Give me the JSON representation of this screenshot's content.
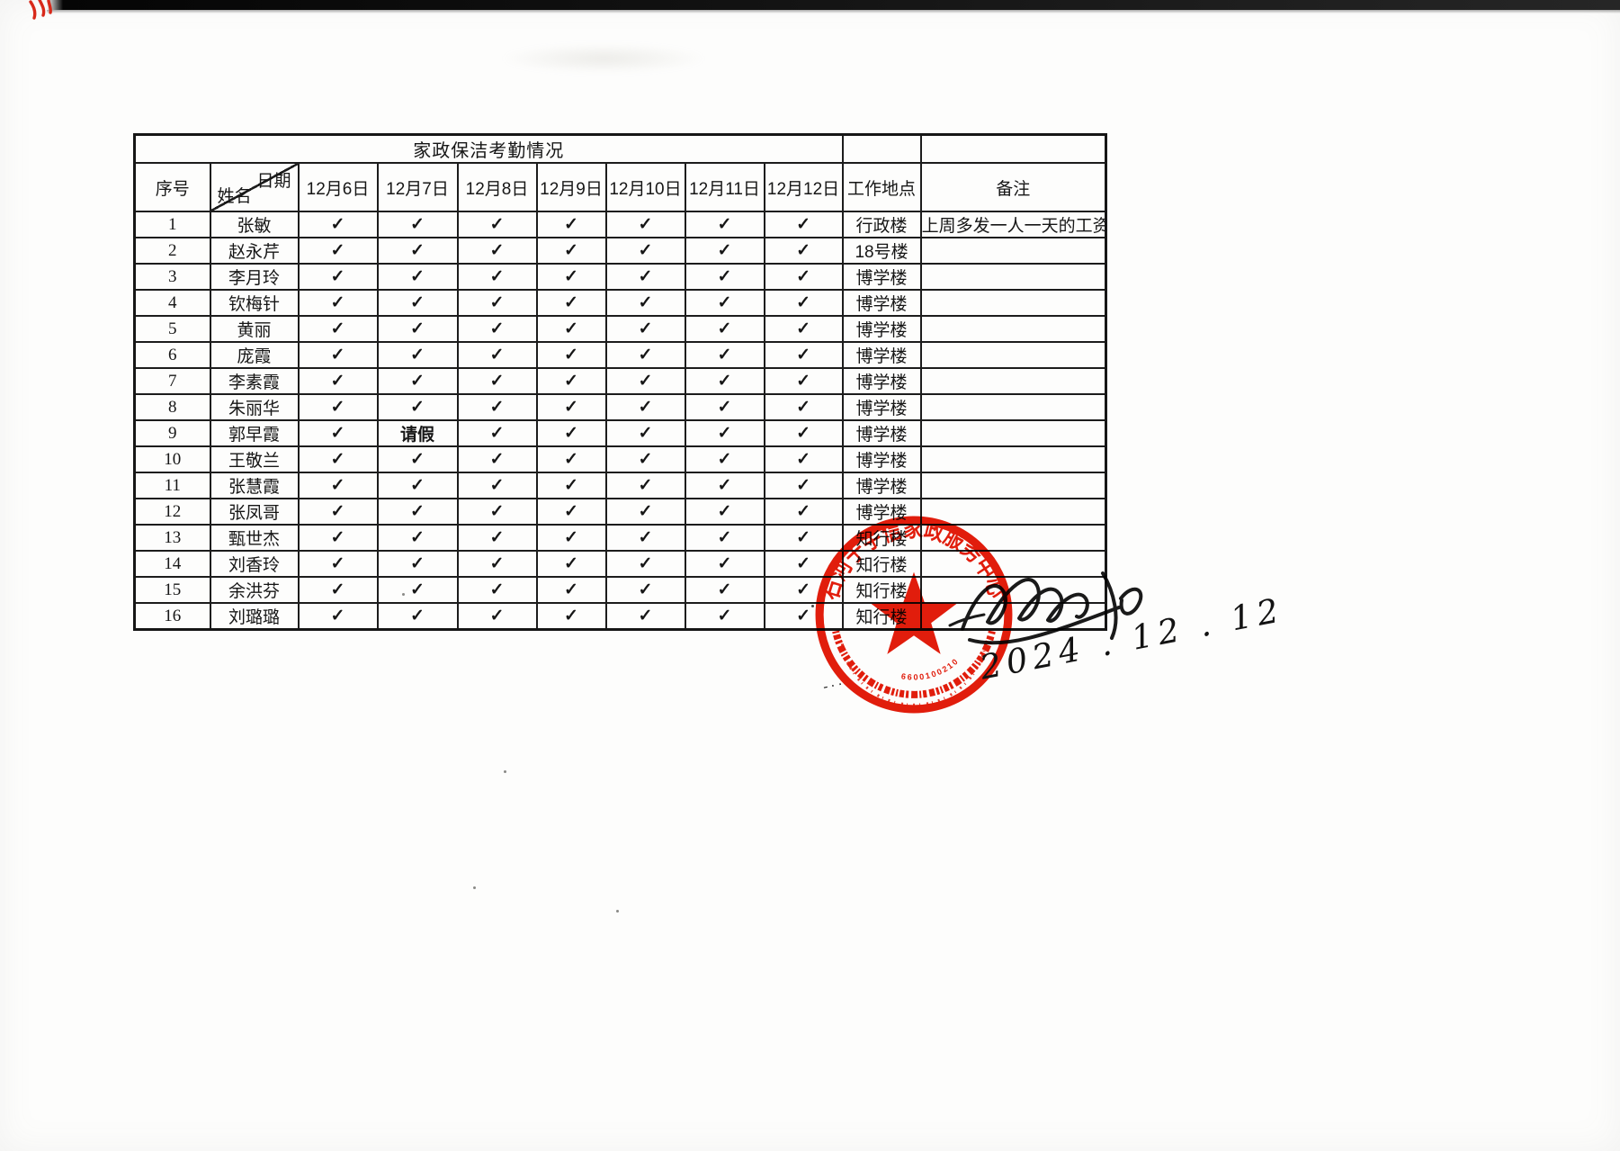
{
  "document": {
    "title": "家政保洁考勤情况",
    "corner_header": {
      "top_right": "日期",
      "bottom_left": "姓名"
    },
    "columns": {
      "index": "序号",
      "dates": [
        "12月6日",
        "12月7日",
        "12月8日",
        "12月9日",
        "12月10日",
        "12月11日",
        "12月12日"
      ],
      "location": "工作地点",
      "remark": "备注"
    },
    "rows": [
      {
        "no": "1",
        "name": "张敏",
        "marks": [
          "✓",
          "✓",
          "✓",
          "✓",
          "✓",
          "✓",
          "✓"
        ],
        "location": "行政楼",
        "remark": "上周多发一人一天的工资"
      },
      {
        "no": "2",
        "name": "赵永芹",
        "marks": [
          "✓",
          "✓",
          "✓",
          "✓",
          "✓",
          "✓",
          "✓"
        ],
        "location": "18号楼",
        "remark": ""
      },
      {
        "no": "3",
        "name": "李月玲",
        "marks": [
          "✓",
          "✓",
          "✓",
          "✓",
          "✓",
          "✓",
          "✓"
        ],
        "location": "博学楼",
        "remark": ""
      },
      {
        "no": "4",
        "name": "钦梅针",
        "marks": [
          "✓",
          "✓",
          "✓",
          "✓",
          "✓",
          "✓",
          "✓"
        ],
        "location": "博学楼",
        "remark": ""
      },
      {
        "no": "5",
        "name": "黄丽",
        "marks": [
          "✓",
          "✓",
          "✓",
          "✓",
          "✓",
          "✓",
          "✓"
        ],
        "location": "博学楼",
        "remark": ""
      },
      {
        "no": "6",
        "name": "庞霞",
        "marks": [
          "✓",
          "✓",
          "✓",
          "✓",
          "✓",
          "✓",
          "✓"
        ],
        "location": "博学楼",
        "remark": ""
      },
      {
        "no": "7",
        "name": "李素霞",
        "marks": [
          "✓",
          "✓",
          "✓",
          "✓",
          "✓",
          "✓",
          "✓"
        ],
        "location": "博学楼",
        "remark": ""
      },
      {
        "no": "8",
        "name": "朱丽华",
        "marks": [
          "✓",
          "✓",
          "✓",
          "✓",
          "✓",
          "✓",
          "✓"
        ],
        "location": "博学楼",
        "remark": ""
      },
      {
        "no": "9",
        "name": "郭早霞",
        "marks": [
          "✓",
          "请假",
          "✓",
          "✓",
          "✓",
          "✓",
          "✓"
        ],
        "location": "博学楼",
        "remark": ""
      },
      {
        "no": "10",
        "name": "王敬兰",
        "marks": [
          "✓",
          "✓",
          "✓",
          "✓",
          "✓",
          "✓",
          "✓"
        ],
        "location": "博学楼",
        "remark": ""
      },
      {
        "no": "11",
        "name": "张慧霞",
        "marks": [
          "✓",
          "✓",
          "✓",
          "✓",
          "✓",
          "✓",
          "✓"
        ],
        "location": "博学楼",
        "remark": ""
      },
      {
        "no": "12",
        "name": "张凤哥",
        "marks": [
          "✓",
          "✓",
          "✓",
          "✓",
          "✓",
          "✓",
          "✓"
        ],
        "location": "博学楼",
        "remark": ""
      },
      {
        "no": "13",
        "name": "甄世杰",
        "marks": [
          "✓",
          "✓",
          "✓",
          "✓",
          "✓",
          "✓",
          "✓"
        ],
        "location": "知行楼",
        "remark": ""
      },
      {
        "no": "14",
        "name": "刘香玲",
        "marks": [
          "✓",
          "✓",
          "✓",
          "✓",
          "✓",
          "✓",
          "✓"
        ],
        "location": "知行楼",
        "remark": ""
      },
      {
        "no": "15",
        "name": "余洪芬",
        "marks": [
          "✓",
          "✓",
          "✓",
          "✓",
          "✓",
          "✓",
          "✓"
        ],
        "location": "知行楼",
        "remark": ""
      },
      {
        "no": "16",
        "name": "刘璐璐",
        "marks": [
          "✓",
          "✓",
          "✓",
          "✓",
          "✓",
          "✓",
          "✓"
        ],
        "location": "知行楼",
        "remark": ""
      }
    ]
  },
  "stamp": {
    "org_name": "石河子宇信家政服务中心",
    "serial": "6600100210459",
    "color": "#e31d0c"
  },
  "handwriting": {
    "date": "2024 . 12 . 12"
  }
}
